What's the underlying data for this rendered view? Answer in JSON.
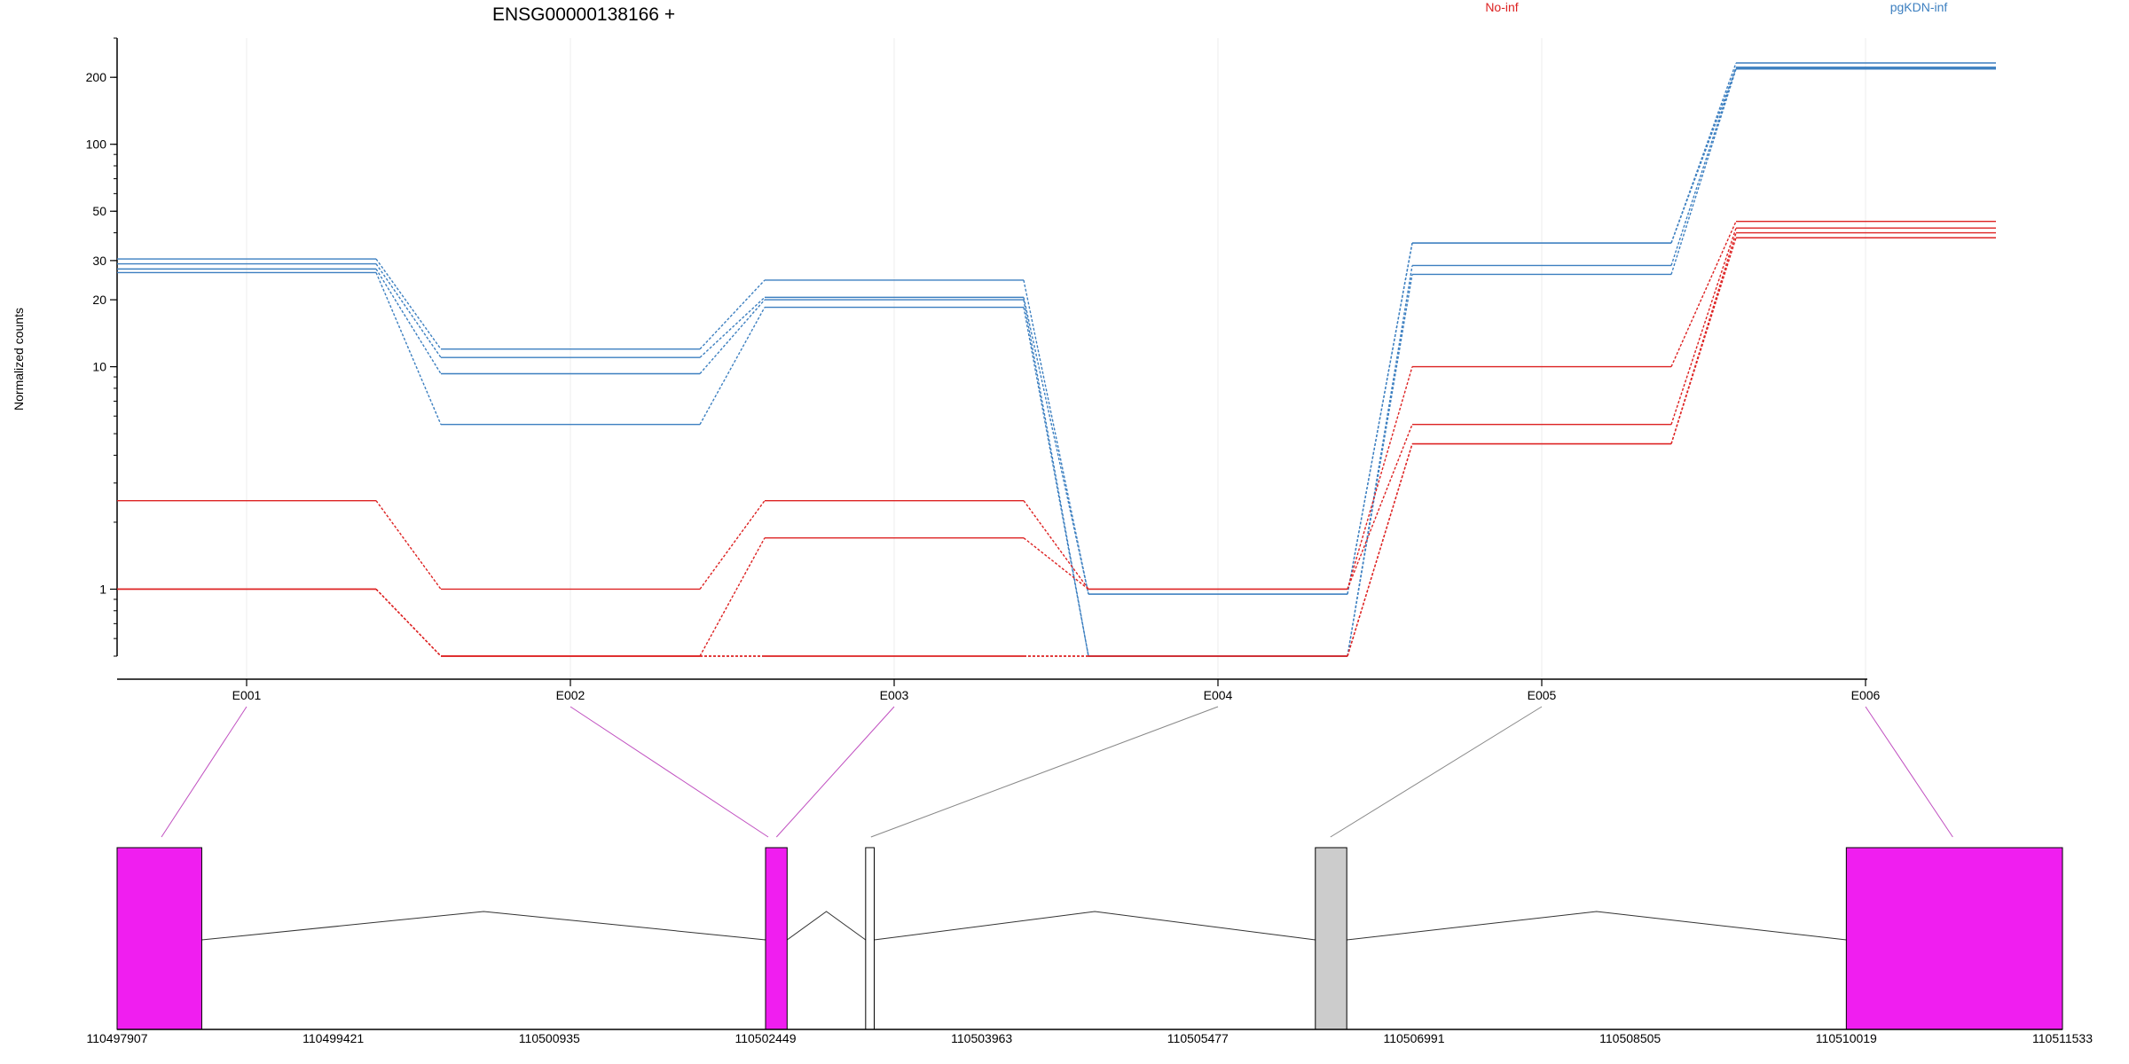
{
  "chart_data": {
    "type": "line",
    "title": "ENSG00000138166 +",
    "ylabel": "Normalized counts",
    "yscale": "log",
    "ylim": [
      0.5,
      300
    ],
    "yticks": [
      1,
      10,
      20,
      30,
      50,
      100,
      200
    ],
    "ytick_labels": [
      "1",
      "10",
      "20",
      "30",
      "50",
      "100",
      "200"
    ],
    "grid": true,
    "legend": [
      {
        "name": "No-inf",
        "color": "#dd2222",
        "placement": "top-center-right"
      },
      {
        "name": "pgKDN-inf",
        "color": "#3c7fc0",
        "placement": "top-right"
      }
    ],
    "categories": [
      "E001",
      "E002",
      "E003",
      "E004",
      "E005",
      "E006"
    ],
    "series": [
      {
        "group": "pgKDN-inf",
        "color": "#3c7fc0",
        "values": [
          30.5,
          12,
          24.5,
          0.95,
          36,
          232
        ]
      },
      {
        "group": "pgKDN-inf",
        "color": "#3c7fc0",
        "values": [
          29,
          11,
          20.5,
          0.95,
          36,
          220
        ]
      },
      {
        "group": "pgKDN-inf",
        "color": "#3c7fc0",
        "values": [
          27.5,
          9.3,
          20,
          0.5,
          28.5,
          222
        ]
      },
      {
        "group": "pgKDN-inf",
        "color": "#3c7fc0",
        "values": [
          26.5,
          5.5,
          18.5,
          0.5,
          26,
          218
        ]
      },
      {
        "group": "No-inf",
        "color": "#dd2222",
        "values": [
          2.5,
          1,
          2.5,
          1,
          10,
          45
        ]
      },
      {
        "group": "No-inf",
        "color": "#dd2222",
        "values": [
          1,
          0.5,
          1.7,
          1,
          5.5,
          42
        ]
      },
      {
        "group": "No-inf",
        "color": "#dd2222",
        "values": [
          1,
          0.5,
          0.5,
          0.5,
          4.5,
          40
        ]
      },
      {
        "group": "No-inf",
        "color": "#dd2222",
        "values": [
          1,
          0.5,
          0.5,
          0.5,
          4.5,
          38
        ]
      }
    ],
    "gene_model": {
      "coordinate_labels": [
        "110497907",
        "110499421",
        "110500935",
        "110502449",
        "110503963",
        "110505477",
        "110506991",
        "110508505",
        "110510019",
        "110511533"
      ],
      "genomic_start": 110497907,
      "genomic_end": 110511533,
      "exons": [
        {
          "start": 110497907,
          "end": 110498500,
          "color": "#f01ef0"
        },
        {
          "start": 110502449,
          "end": 110502600,
          "color": "#f01ef0"
        },
        {
          "start": 110503150,
          "end": 110503210,
          "color": "#ffffff"
        },
        {
          "start": 110506300,
          "end": 110506520,
          "color": "#cccccc"
        },
        {
          "start": 110510019,
          "end": 110511533,
          "color": "#f01ef0"
        }
      ],
      "exon_links": [
        {
          "exon": "E001",
          "color": "#c04fc0"
        },
        {
          "exon": "E002",
          "color": "#c04fc0"
        },
        {
          "exon": "E003",
          "color": "#c04fc0"
        },
        {
          "exon": "E004",
          "color": "#888888"
        },
        {
          "exon": "E005",
          "color": "#888888"
        },
        {
          "exon": "E006",
          "color": "#c04fc0"
        }
      ]
    }
  }
}
